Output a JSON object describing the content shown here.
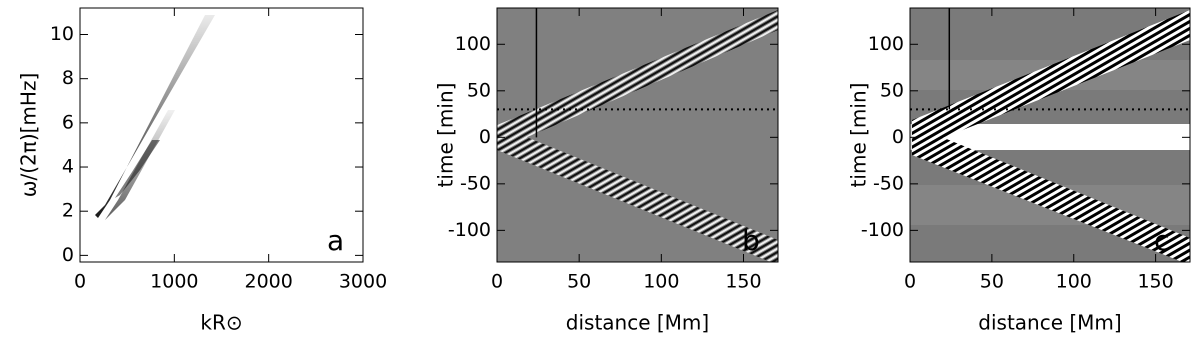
{
  "chart_data": [
    {
      "type": "image",
      "letter": "a",
      "letter_color": "#000000",
      "xlabel": "kR⊙",
      "ylabel": "ω/(2π)[mHz]",
      "xlim": [
        0,
        3000
      ],
      "xticks": [
        0,
        1000,
        2000,
        3000
      ],
      "ylim": [
        -0.3,
        11.2
      ],
      "yticks": [
        0,
        2,
        4,
        6,
        8,
        10
      ]
    },
    {
      "type": "image",
      "letter": "b",
      "letter_color": "#ffffff",
      "xlabel": "distance [Mm]",
      "ylabel": "time [min]",
      "xlim": [
        0,
        171
      ],
      "xticks": [
        0,
        50,
        100,
        150
      ],
      "ylim": [
        -134,
        139
      ],
      "yticks": [
        -100,
        -50,
        0,
        50,
        100
      ],
      "vline_x": 24,
      "hline_y": 30
    },
    {
      "type": "image",
      "letter": "c",
      "letter_color": "#ffffff",
      "xlabel": "distance [Mm]",
      "ylabel": "time [min]",
      "xlim": [
        0,
        171
      ],
      "xticks": [
        0,
        50,
        100,
        150
      ],
      "ylim": [
        -134,
        139
      ],
      "yticks": [
        -100,
        -50,
        0,
        50,
        100
      ],
      "vline_x": 24,
      "hline_y": 30
    }
  ]
}
